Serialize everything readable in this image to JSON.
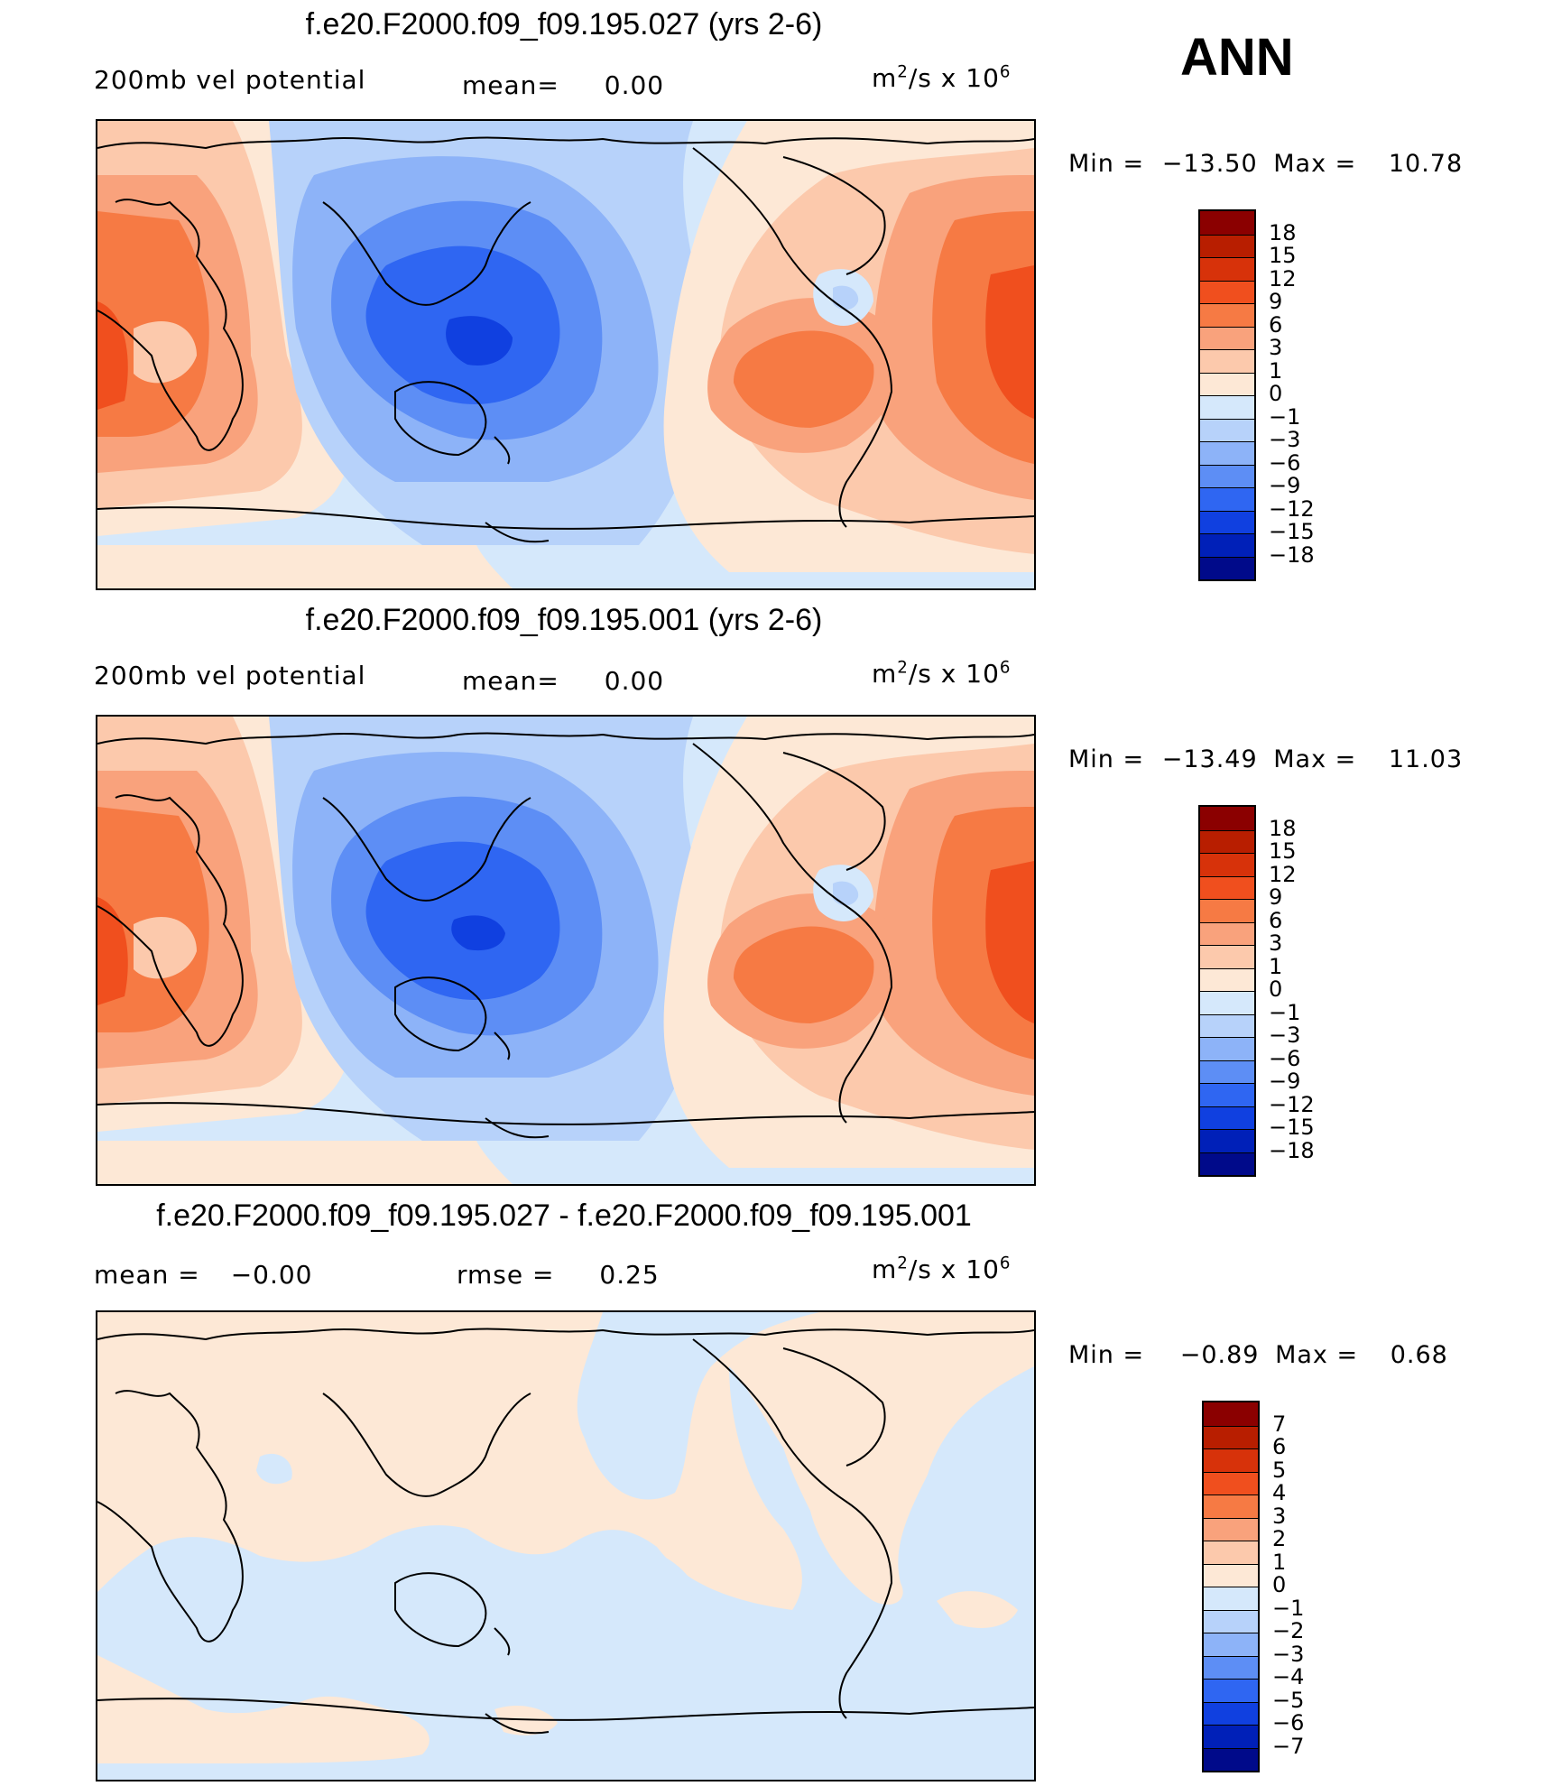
{
  "season": "ANN",
  "panels": [
    {
      "title": "f.e20.F2000.f09_f09.195.027 (yrs 2-6)",
      "left_label": "200mb vel potential",
      "mid_key": "mean=",
      "mid_value": "0.00",
      "units_base": "m",
      "units_exp": "2",
      "units_rest": "/s x 10",
      "units_exp2": "6",
      "min_label": "Min =",
      "min_value": "−13.50",
      "max_label": "Max =",
      "max_value": "10.78"
    },
    {
      "title": "f.e20.F2000.f09_f09.195.001 (yrs 2-6)",
      "left_label": "200mb vel potential",
      "mid_key": "mean=",
      "mid_value": "0.00",
      "units_base": "m",
      "units_exp": "2",
      "units_rest": "/s x 10",
      "units_exp2": "6",
      "min_label": "Min =",
      "min_value": "−13.49",
      "max_label": "Max =",
      "max_value": "11.03"
    },
    {
      "title": "f.e20.F2000.f09_f09.195.027 - f.e20.F2000.f09_f09.195.001",
      "left_key": "mean =",
      "left_value": "−0.00",
      "mid_key": "rmse =",
      "mid_value": "0.25",
      "units_base": "m",
      "units_exp": "2",
      "units_rest": "/s x 10",
      "units_exp2": "6",
      "min_label": "Min =",
      "min_value": "−0.89",
      "max_label": "Max =",
      "max_value": "0.68"
    }
  ],
  "colorbars": {
    "abs_ticks": [
      "18",
      "15",
      "12",
      "9",
      "6",
      "3",
      "1",
      "0",
      "−1",
      "−3",
      "−6",
      "−9",
      "−12",
      "−15",
      "−18"
    ],
    "diff_ticks": [
      "7",
      "6",
      "5",
      "4",
      "3",
      "2",
      "1",
      "0",
      "−1",
      "−2",
      "−3",
      "−4",
      "−5",
      "−6",
      "−7"
    ],
    "colors": [
      "#8b0000",
      "#b81e00",
      "#d7320a",
      "#f04f1e",
      "#f67a44",
      "#f9a27c",
      "#fcc9ac",
      "#fde8d6",
      "#d5e8fb",
      "#b7d2fa",
      "#8db3f8",
      "#5d8ef5",
      "#2f66f2",
      "#1040e0",
      "#0020b8",
      "#000a8a"
    ]
  }
}
